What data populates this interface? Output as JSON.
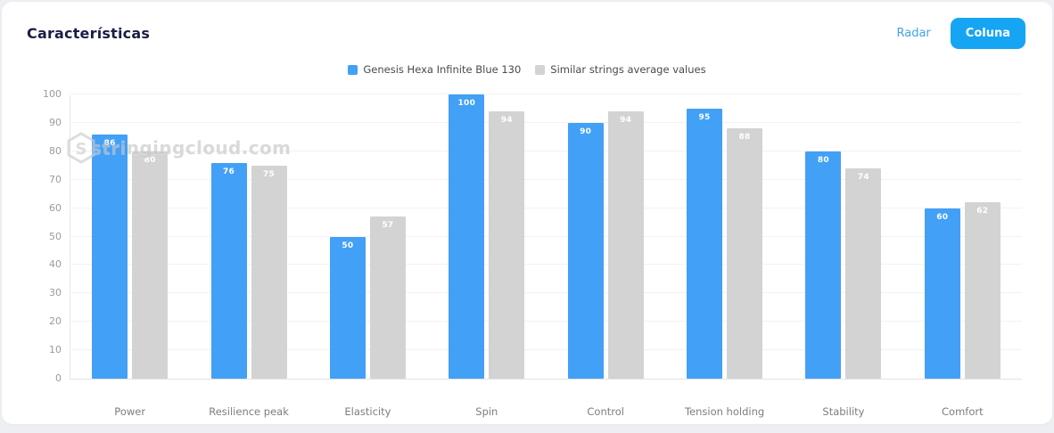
{
  "header": {
    "title": "Características",
    "radar_label": "Radar",
    "coluna_label": "Coluna"
  },
  "legend": {
    "items": [
      {
        "label": "Genesis Hexa Infinite Blue 130",
        "color": "#42a0f6"
      },
      {
        "label": "Similar strings average values",
        "color": "#d3d3d3"
      }
    ]
  },
  "watermark": {
    "text": "stringingcloud.com"
  },
  "chart_data": {
    "type": "bar",
    "title": "Características",
    "categories": [
      "Power",
      "Resilience peak",
      "Elasticity",
      "Spin",
      "Control",
      "Tension holding",
      "Stability",
      "Comfort"
    ],
    "series": [
      {
        "name": "Genesis Hexa Infinite Blue 130",
        "color": "#42a0f6",
        "values": [
          86,
          76,
          50,
          100,
          90,
          95,
          80,
          60
        ]
      },
      {
        "name": "Similar strings average values",
        "color": "#d3d3d3",
        "values": [
          80,
          75,
          57,
          94,
          94,
          88,
          74,
          62
        ]
      }
    ],
    "xlabel": "",
    "ylabel": "",
    "ylim": [
      0,
      100
    ],
    "ytick_step": 10,
    "grid": true,
    "legend_position": "top",
    "value_labels": true
  },
  "colors": {
    "accent_blue": "#16a5f3",
    "link_blue": "#41a3e8",
    "title_navy": "#1b1d45",
    "bar_blue": "#42a0f6",
    "bar_gray": "#d3d3d3"
  }
}
